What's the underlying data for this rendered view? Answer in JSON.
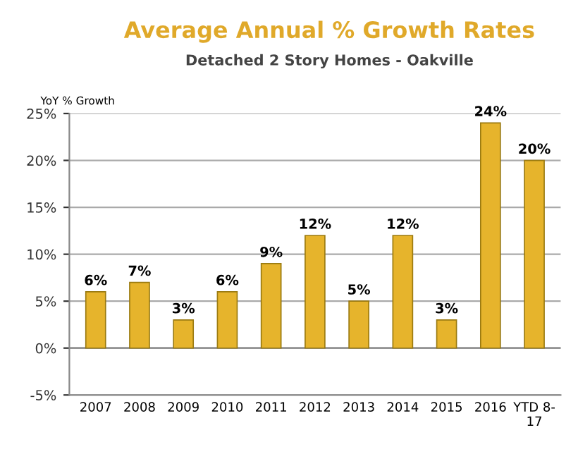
{
  "chart_data": {
    "type": "bar",
    "title": "Average Annual % Growth Rates",
    "subtitle": "Detached 2 Story Homes - Oakville",
    "ylabel": "YoY % Growth",
    "categories": [
      "2007",
      "2008",
      "2009",
      "2010",
      "2011",
      "2012",
      "2013",
      "2014",
      "2015",
      "2016",
      "YTD 8-\n17"
    ],
    "values": [
      6,
      7,
      3,
      6,
      9,
      12,
      5,
      12,
      3,
      24,
      20
    ],
    "value_labels": [
      "6%",
      "7%",
      "3%",
      "6%",
      "9%",
      "12%",
      "5%",
      "12%",
      "3%",
      "24%",
      "20%"
    ],
    "color": "#e6b42c",
    "ylim": [
      -5,
      25
    ],
    "yticks": [
      {
        "value": -5,
        "label": "-5%"
      },
      {
        "value": 0,
        "label": "0%"
      },
      {
        "value": 5,
        "label": "5%"
      },
      {
        "value": 10,
        "label": "10%"
      },
      {
        "value": 15,
        "label": "15%"
      },
      {
        "value": 20,
        "label": "20%"
      },
      {
        "value": 25,
        "label": "25%"
      }
    ],
    "grid": "y"
  }
}
